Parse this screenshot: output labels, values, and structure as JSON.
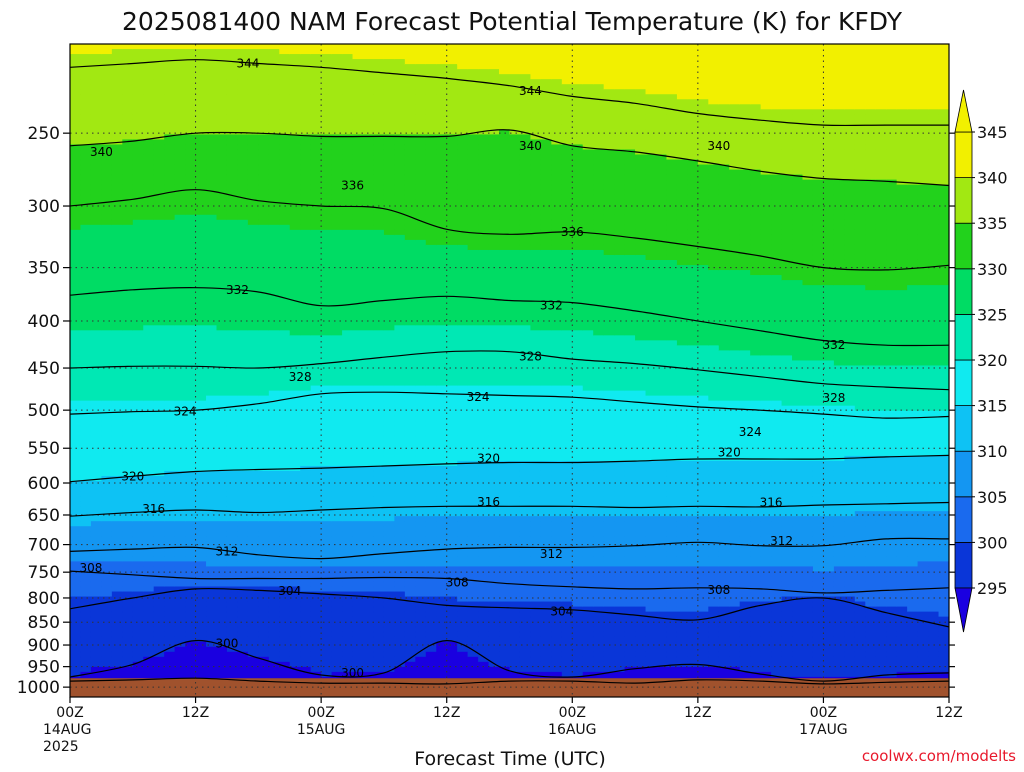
{
  "chart_data": {
    "type": "contour",
    "title": "2025081400 NAM Forecast Potential Temperature (K) for KFDY",
    "xlabel": "Forecast Time (UTC)",
    "ylabel": "",
    "y_scale": "log-pressure",
    "ylim": [
      1025,
      200
    ],
    "xlim": [
      0,
      84
    ],
    "y_ticks": [
      250,
      300,
      350,
      400,
      450,
      500,
      550,
      600,
      650,
      700,
      750,
      800,
      850,
      900,
      950,
      1000
    ],
    "x_ticks": [
      {
        "hour": 0,
        "lines": [
          "00Z",
          "14AUG",
          "2025"
        ]
      },
      {
        "hour": 12,
        "lines": [
          "12Z"
        ]
      },
      {
        "hour": 24,
        "lines": [
          "00Z",
          "15AUG"
        ]
      },
      {
        "hour": 36,
        "lines": [
          "12Z"
        ]
      },
      {
        "hour": 48,
        "lines": [
          "00Z",
          "16AUG"
        ]
      },
      {
        "hour": 60,
        "lines": [
          "12Z"
        ]
      },
      {
        "hour": 72,
        "lines": [
          "00Z",
          "17AUG"
        ]
      },
      {
        "hour": 84,
        "lines": [
          "12Z"
        ]
      }
    ],
    "grid": true,
    "surface_pressure": 978,
    "colorbar": {
      "placement": "right",
      "levels": [
        295,
        300,
        305,
        310,
        315,
        320,
        325,
        330,
        335,
        340,
        345
      ],
      "colors": [
        "#1a00e0",
        "#0a36d8",
        "#1a6aee",
        "#1496f2",
        "#0ec2f4",
        "#10eaf0",
        "#00e8b4",
        "#00dc64",
        "#22d21c",
        "#a2e812",
        "#f2f000"
      ]
    },
    "isotherm_profiles": {
      "hours": [
        0,
        6,
        12,
        18,
        24,
        30,
        36,
        42,
        48,
        54,
        60,
        66,
        72,
        78,
        84
      ],
      "series": [
        {
          "theta": 298,
          "pressure": [
            985,
            982,
            978,
            985,
            990,
            990,
            992,
            985,
            985,
            990,
            982,
            985,
            992,
            988,
            985
          ]
        },
        {
          "theta": 300,
          "pressure": [
            975,
            945,
            890,
            930,
            970,
            965,
            890,
            960,
            975,
            955,
            945,
            968,
            985,
            970,
            965
          ]
        },
        {
          "theta": 304,
          "pressure": [
            822,
            800,
            782,
            785,
            792,
            800,
            815,
            820,
            824,
            835,
            845,
            815,
            800,
            830,
            860
          ]
        },
        {
          "theta": 308,
          "pressure": [
            748,
            755,
            762,
            762,
            762,
            760,
            762,
            772,
            778,
            782,
            780,
            782,
            790,
            785,
            780
          ]
        },
        {
          "theta": 312,
          "pressure": [
            712,
            708,
            705,
            718,
            725,
            716,
            708,
            705,
            705,
            702,
            696,
            702,
            702,
            690,
            690
          ]
        },
        {
          "theta": 316,
          "pressure": [
            652,
            646,
            642,
            646,
            642,
            638,
            636,
            636,
            636,
            638,
            636,
            637,
            634,
            632,
            630
          ]
        },
        {
          "theta": 320,
          "pressure": [
            598,
            590,
            583,
            580,
            578,
            575,
            572,
            570,
            570,
            568,
            565,
            565,
            565,
            562,
            560
          ]
        },
        {
          "theta": 324,
          "pressure": [
            505,
            502,
            500,
            492,
            480,
            478,
            480,
            482,
            484,
            490,
            496,
            500,
            505,
            510,
            508
          ]
        },
        {
          "theta": 328,
          "pressure": [
            450,
            448,
            448,
            450,
            445,
            438,
            432,
            432,
            440,
            445,
            452,
            460,
            468,
            472,
            475
          ]
        },
        {
          "theta": 332,
          "pressure": [
            375,
            370,
            368,
            372,
            385,
            380,
            376,
            380,
            382,
            390,
            400,
            410,
            420,
            425,
            425
          ]
        },
        {
          "theta": 336,
          "pressure": [
            300,
            295,
            288,
            296,
            300,
            302,
            318,
            322,
            320,
            325,
            332,
            340,
            350,
            352,
            348
          ]
        },
        {
          "theta": 340,
          "pressure": [
            258,
            255,
            250,
            250,
            252,
            252,
            252,
            248,
            258,
            262,
            268,
            275,
            280,
            282,
            285
          ]
        },
        {
          "theta": 344,
          "pressure": [
            212,
            210,
            208,
            210,
            212,
            215,
            218,
            222,
            228,
            232,
            238,
            242,
            245,
            245,
            245
          ]
        }
      ]
    },
    "contour_labels": [
      {
        "text": "344",
        "hour": 17,
        "pressure": 210
      },
      {
        "text": "344",
        "hour": 44,
        "pressure": 225
      },
      {
        "text": "340",
        "hour": 3,
        "pressure": 262
      },
      {
        "text": "340",
        "hour": 44,
        "pressure": 258
      },
      {
        "text": "340",
        "hour": 62,
        "pressure": 258
      },
      {
        "text": "336",
        "hour": 27,
        "pressure": 285
      },
      {
        "text": "336",
        "hour": 48,
        "pressure": 320
      },
      {
        "text": "332",
        "hour": 16,
        "pressure": 370
      },
      {
        "text": "332",
        "hour": 46,
        "pressure": 385
      },
      {
        "text": "332",
        "hour": 73,
        "pressure": 425
      },
      {
        "text": "328",
        "hour": 22,
        "pressure": 460
      },
      {
        "text": "328",
        "hour": 44,
        "pressure": 437
      },
      {
        "text": "328",
        "hour": 73,
        "pressure": 485
      },
      {
        "text": "324",
        "hour": 11,
        "pressure": 502
      },
      {
        "text": "324",
        "hour": 39,
        "pressure": 484
      },
      {
        "text": "324",
        "hour": 65,
        "pressure": 528
      },
      {
        "text": "320",
        "hour": 6,
        "pressure": 590
      },
      {
        "text": "320",
        "hour": 40,
        "pressure": 564
      },
      {
        "text": "320",
        "hour": 63,
        "pressure": 556
      },
      {
        "text": "316",
        "hour": 8,
        "pressure": 640
      },
      {
        "text": "316",
        "hour": 40,
        "pressure": 629
      },
      {
        "text": "316",
        "hour": 67,
        "pressure": 630
      },
      {
        "text": "312",
        "hour": 15,
        "pressure": 712
      },
      {
        "text": "312",
        "hour": 46,
        "pressure": 717
      },
      {
        "text": "312",
        "hour": 68,
        "pressure": 694
      },
      {
        "text": "308",
        "hour": 2,
        "pressure": 742
      },
      {
        "text": "308",
        "hour": 37,
        "pressure": 770
      },
      {
        "text": "308",
        "hour": 62,
        "pressure": 784
      },
      {
        "text": "304",
        "hour": 21,
        "pressure": 786
      },
      {
        "text": "304",
        "hour": 47,
        "pressure": 828
      },
      {
        "text": "300",
        "hour": 15,
        "pressure": 896
      },
      {
        "text": "300",
        "hour": 27,
        "pressure": 965
      }
    ]
  },
  "watermark": "coolwx.com/modelts"
}
